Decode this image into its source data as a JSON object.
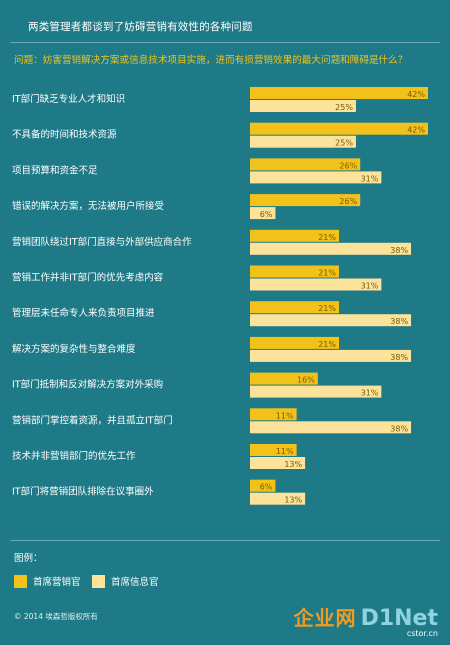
{
  "header": {
    "title": "两类管理者都谈到了妨碍营销有效性的各种问题",
    "question": "问题：妨害营销解决方案或信息技术项目实施，进而有损营销效果的最大问题和障碍是什么？"
  },
  "chart_data": {
    "type": "bar",
    "orientation": "horizontal",
    "xlim": [
      0,
      42
    ],
    "categories": [
      "IT部门缺乏专业人才和知识",
      "不具备的时间和技术资源",
      "项目预算和资金不足",
      "错误的解决方案，无法被用户所接受",
      "营销团队绕过IT部门直接与外部供应商合作",
      "营销工作并非IT部门的优先考虑内容",
      "管理层未任命专人来负责项目推进",
      "解决方案的复杂性与整合难度",
      "IT部门抵制和反对解决方案对外采购",
      "营销部门掌控着资源，并且孤立IT部门",
      "技术并非营销部门的优先工作",
      "IT部门将营销团队排除在议事圈外"
    ],
    "series": [
      {
        "name": "首席营销官",
        "color": "#f2c21a",
        "values": [
          42,
          42,
          26,
          26,
          21,
          21,
          21,
          21,
          16,
          11,
          11,
          6
        ]
      },
      {
        "name": "首席信息官",
        "color": "#fbe39c",
        "values": [
          25,
          25,
          31,
          6,
          38,
          31,
          38,
          38,
          31,
          38,
          13,
          13
        ]
      }
    ],
    "value_labels": [
      [
        "42%",
        "42%",
        "26%",
        "26%",
        "21%",
        "21%",
        "21%",
        "21%",
        "16%",
        "11%",
        "11%",
        "6%"
      ],
      [
        "25%",
        "25%",
        "31%",
        "6%",
        "38%",
        "31%",
        "38%",
        "38%",
        "31%",
        "38%",
        "13%",
        "13%"
      ]
    ]
  },
  "legend": {
    "title": "图例：",
    "items": [
      "首席营销官",
      "首席信息官"
    ]
  },
  "footer": {
    "copyright": "© 2014 埃森哲版权所有",
    "watermark_cn": "企业网",
    "watermark_d1": "D1",
    "watermark_net": "Net",
    "watermark_domain": "cstor.cn"
  }
}
